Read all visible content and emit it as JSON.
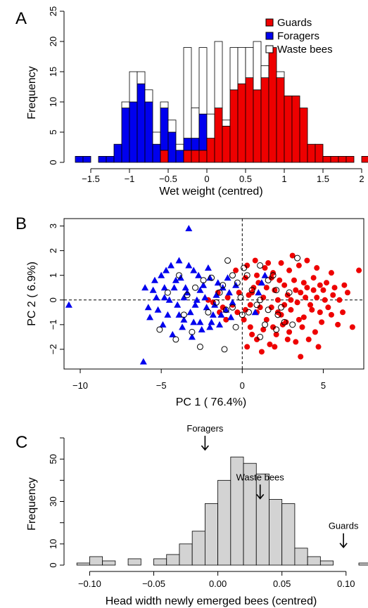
{
  "chart_data": [
    {
      "panel": "A",
      "type": "bar",
      "title": "",
      "xlabel": "Wet weight (centred)",
      "ylabel": "Frequency",
      "xlim": [
        -1.7,
        1.9
      ],
      "ylim": [
        0,
        25
      ],
      "xticks": [
        -1.5,
        -1,
        -0.5,
        0,
        0.5,
        1,
        1.5,
        2
      ],
      "xtick_labels": [
        "−1.5",
        "−1",
        "−0.5",
        "0",
        "0.5",
        "1",
        "1.5",
        "2"
      ],
      "yticks": [
        0,
        5,
        10,
        15,
        20,
        25
      ],
      "ytick_labels": [
        "0",
        "5",
        "10",
        "15",
        "20",
        "25"
      ],
      "bin_width": 0.1,
      "bin_start": -1.7,
      "stacked": true,
      "legend_position": "top-right",
      "series": [
        {
          "name": "Guards",
          "color": "#ee0000",
          "values": [
            0,
            0,
            0,
            0,
            0,
            0,
            0,
            0,
            0,
            0,
            0,
            2,
            0,
            0,
            2,
            2,
            2,
            4,
            9,
            6,
            12,
            13,
            14,
            12,
            14,
            19,
            14,
            11,
            11,
            9,
            3,
            3,
            1,
            1,
            1,
            1,
            0,
            1
          ]
        },
        {
          "name": "Foragers",
          "color": "#0000ee",
          "values": [
            1,
            1,
            0,
            1,
            1,
            3,
            9,
            10,
            13,
            10,
            3,
            7,
            5,
            2,
            2,
            2,
            6,
            0,
            0,
            0,
            0,
            0,
            0,
            0,
            0,
            0,
            0,
            0,
            0,
            0,
            0,
            0,
            0,
            0,
            0,
            0,
            0,
            0
          ]
        },
        {
          "name": "Waste bees",
          "color": "#ffffff",
          "values": [
            0,
            0,
            0,
            0,
            0,
            0,
            1,
            5,
            2,
            2,
            2,
            1,
            2,
            1,
            15,
            5,
            11,
            4,
            11,
            1,
            7,
            6,
            5,
            8,
            2,
            0,
            1,
            0,
            0,
            0,
            0,
            0,
            0,
            0,
            0,
            0,
            0,
            0
          ]
        }
      ]
    },
    {
      "panel": "B",
      "type": "scatter",
      "title": "",
      "xlabel": "PC 1 ( 76.4%)",
      "ylabel": "PC 2 ( 6.9%)",
      "xlim": [
        -11,
        7.5
      ],
      "ylim": [
        -2.8,
        3.3
      ],
      "xticks": [
        -10,
        -5,
        0,
        5
      ],
      "xtick_labels": [
        "−10",
        "−5",
        "0",
        "5"
      ],
      "yticks": [
        -2,
        -1,
        0,
        1,
        2,
        3
      ],
      "ytick_labels": [
        "−2",
        "−1",
        "0",
        "1",
        "2",
        "3"
      ],
      "reference_lines": {
        "x": 0,
        "y": 0
      },
      "series": [
        {
          "name": "Guards",
          "marker": "circle-filled",
          "color": "#ee0000",
          "points": [
            [
              0.2,
              0.9
            ],
            [
              0.6,
              0.3
            ],
            [
              1.0,
              0.7
            ],
            [
              0.5,
              -0.2
            ],
            [
              0.9,
              -0.5
            ],
            [
              1.3,
              0.1
            ],
            [
              1.5,
              0.5
            ],
            [
              1.8,
              -0.3
            ],
            [
              2.0,
              0.4
            ],
            [
              2.2,
              0.0
            ],
            [
              2.4,
              -0.6
            ],
            [
              2.6,
              0.6
            ],
            [
              2.8,
              0.2
            ],
            [
              3.0,
              -0.4
            ],
            [
              3.2,
              0.8
            ],
            [
              3.4,
              -0.1
            ],
            [
              3.6,
              0.3
            ],
            [
              3.8,
              -0.7
            ],
            [
              4.0,
              0.5
            ],
            [
              4.2,
              -0.2
            ],
            [
              4.4,
              0.9
            ],
            [
              4.6,
              0.1
            ],
            [
              4.8,
              -0.5
            ],
            [
              5.0,
              0.4
            ],
            [
              5.3,
              -0.3
            ],
            [
              5.6,
              0.2
            ],
            [
              6.0,
              0.0
            ],
            [
              6.3,
              0.6
            ],
            [
              6.8,
              -1.1
            ],
            [
              7.2,
              1.2
            ],
            [
              5.2,
              0.7
            ],
            [
              4.9,
              -0.9
            ],
            [
              4.5,
              -1.3
            ],
            [
              4.1,
              -1.6
            ],
            [
              3.7,
              -1.1
            ],
            [
              3.3,
              -1.7
            ],
            [
              2.9,
              -1.3
            ],
            [
              2.5,
              -1.0
            ],
            [
              2.1,
              -1.4
            ],
            [
              1.7,
              -1.8
            ],
            [
              1.3,
              -1.2
            ],
            [
              0.9,
              -1.6
            ],
            [
              0.5,
              -1.1
            ],
            [
              0.3,
              -1.9
            ],
            [
              0.1,
              -0.8
            ],
            [
              -0.3,
              -0.5
            ],
            [
              -0.6,
              -0.2
            ],
            [
              -0.9,
              0.1
            ],
            [
              -1.2,
              -0.3
            ],
            [
              -1.5,
              0.3
            ],
            [
              -1.8,
              -0.1
            ],
            [
              -2.1,
              0.0
            ],
            [
              -0.4,
              1.2
            ],
            [
              0.3,
              1.4
            ],
            [
              0.8,
              1.6
            ],
            [
              1.4,
              1.3
            ],
            [
              1.9,
              1.1
            ],
            [
              2.4,
              1.5
            ],
            [
              2.9,
              1.2
            ],
            [
              3.5,
              1.4
            ],
            [
              4.0,
              1.6
            ],
            [
              4.6,
              1.3
            ],
            [
              5.5,
              1.1
            ],
            [
              5.9,
              -1.0
            ],
            [
              6.5,
              0.3
            ],
            [
              3.1,
              1.8
            ],
            [
              1.6,
              1.5
            ],
            [
              2.3,
              0.8
            ],
            [
              3.9,
              0.1
            ],
            [
              4.3,
              -0.4
            ],
            [
              2.7,
              -0.9
            ],
            [
              1.1,
              -0.3
            ],
            [
              0.7,
              0.5
            ],
            [
              0.2,
              -0.4
            ],
            [
              3.6,
              -2.3
            ],
            [
              4.7,
              -1.9
            ],
            [
              1.2,
              -2.1
            ],
            [
              2.0,
              -1.9
            ],
            [
              5.5,
              -0.6
            ],
            [
              6.2,
              -0.5
            ],
            [
              0.9,
              1.0
            ],
            [
              1.8,
              0.9
            ],
            [
              2.6,
              -0.2
            ],
            [
              3.3,
              0.4
            ],
            [
              4.4,
              0.4
            ],
            [
              5.1,
              0.0
            ],
            [
              2.2,
              -0.5
            ],
            [
              1.5,
              -0.8
            ],
            [
              0.4,
              0.2
            ],
            [
              -0.2,
              0.3
            ],
            [
              -1.0,
              -0.8
            ],
            [
              -1.4,
              -0.5
            ],
            [
              3.0,
              0.0
            ],
            [
              3.8,
              0.7
            ],
            [
              4.8,
              0.6
            ],
            [
              5.7,
              0.5
            ],
            [
              0.6,
              -1.4
            ],
            [
              1.9,
              -1.1
            ],
            [
              2.8,
              -1.6
            ],
            [
              3.5,
              -0.8
            ]
          ]
        },
        {
          "name": "Foragers",
          "marker": "triangle-filled",
          "color": "#0000ee",
          "points": [
            [
              -10.7,
              -0.2
            ],
            [
              -6.1,
              -2.5
            ],
            [
              -3.3,
              2.9
            ],
            [
              -5.8,
              -0.3
            ],
            [
              -5.5,
              0.4
            ],
            [
              -5.2,
              -0.4
            ],
            [
              -5.0,
              1.0
            ],
            [
              -4.8,
              0.1
            ],
            [
              -4.6,
              -0.6
            ],
            [
              -4.4,
              1.4
            ],
            [
              -4.2,
              0.5
            ],
            [
              -4.0,
              -0.2
            ],
            [
              -3.8,
              0.9
            ],
            [
              -3.6,
              -0.8
            ],
            [
              -3.4,
              0.3
            ],
            [
              -3.2,
              -0.5
            ],
            [
              -3.0,
              1.2
            ],
            [
              -2.8,
              0.0
            ],
            [
              -2.6,
              -0.9
            ],
            [
              -2.4,
              0.6
            ],
            [
              -2.2,
              -0.3
            ],
            [
              -2.0,
              0.9
            ],
            [
              -1.8,
              -0.6
            ],
            [
              -1.6,
              0.2
            ],
            [
              -1.4,
              -1.0
            ],
            [
              -1.2,
              0.5
            ],
            [
              -1.0,
              -0.4
            ],
            [
              -0.8,
              0.3
            ],
            [
              -0.6,
              -0.1
            ],
            [
              -0.4,
              0.6
            ],
            [
              -4.9,
              -1.0
            ],
            [
              -4.3,
              -1.4
            ],
            [
              -3.7,
              -1.1
            ],
            [
              -3.1,
              -1.5
            ],
            [
              -2.5,
              -1.2
            ],
            [
              -1.9,
              -0.9
            ],
            [
              -5.4,
              0.8
            ],
            [
              -4.7,
              1.2
            ],
            [
              -3.9,
              1.6
            ],
            [
              -3.3,
              1.4
            ],
            [
              -2.7,
              1.0
            ],
            [
              -2.1,
              1.3
            ],
            [
              -1.5,
              0.7
            ],
            [
              -6.0,
              0.5
            ],
            [
              -5.7,
              -0.7
            ],
            [
              -4.5,
              0.0
            ],
            [
              -3.5,
              0.5
            ],
            [
              -2.9,
              -0.2
            ],
            [
              -2.3,
              0.1
            ],
            [
              -1.7,
              -0.2
            ],
            [
              -4.1,
              0.8
            ],
            [
              -3.9,
              -0.6
            ],
            [
              -2.0,
              -1.1
            ],
            [
              -1.3,
              -0.6
            ],
            [
              -0.9,
              0.9
            ],
            [
              -0.7,
              -0.7
            ],
            [
              -3.6,
              0.1
            ],
            [
              -4.8,
              0.5
            ],
            [
              1.2,
              0.7
            ],
            [
              1.4,
              1.0
            ],
            [
              0.8,
              -0.5
            ],
            [
              1.0,
              0.3
            ],
            [
              -5.3,
              0.1
            ],
            [
              -2.6,
              0.4
            ],
            [
              -3.0,
              -0.9
            ]
          ]
        },
        {
          "name": "Waste bees",
          "marker": "circle-open",
          "color": "#000000",
          "points": [
            [
              -5.1,
              -1.2
            ],
            [
              -4.1,
              -1.6
            ],
            [
              -3.1,
              -1.3
            ],
            [
              -2.6,
              -1.9
            ],
            [
              -1.1,
              -2.0
            ],
            [
              -3.6,
              -0.6
            ],
            [
              -2.1,
              -0.5
            ],
            [
              -0.6,
              -0.3
            ],
            [
              0.4,
              -0.5
            ],
            [
              1.4,
              -1.0
            ],
            [
              2.1,
              -1.2
            ],
            [
              2.6,
              -0.9
            ],
            [
              1.1,
              -1.5
            ],
            [
              -1.6,
              -0.1
            ],
            [
              -0.1,
              0.1
            ],
            [
              0.6,
              0.4
            ],
            [
              1.1,
              0.0
            ],
            [
              1.6,
              0.8
            ],
            [
              2.1,
              0.4
            ],
            [
              -0.6,
              1.0
            ],
            [
              -0.9,
              1.6
            ],
            [
              0.1,
              1.3
            ],
            [
              1.1,
              1.4
            ],
            [
              3.4,
              1.7
            ],
            [
              -3.9,
              1.0
            ],
            [
              -2.9,
              0.5
            ],
            [
              -1.4,
              0.3
            ],
            [
              0.9,
              -0.2
            ],
            [
              2.4,
              -0.3
            ],
            [
              3.1,
              -1.0
            ],
            [
              -4.6,
              0.3
            ],
            [
              -1.9,
              0.9
            ],
            [
              -0.3,
              0.7
            ],
            [
              1.6,
              -0.4
            ],
            [
              2.9,
              0.3
            ],
            [
              -3.4,
              0.2
            ],
            [
              -1.0,
              -0.4
            ],
            [
              0.3,
              1.0
            ],
            [
              1.9,
              1.0
            ],
            [
              -2.4,
              0.8
            ],
            [
              -1.2,
              0.6
            ],
            [
              0.0,
              -0.6
            ],
            [
              2.2,
              -0.6
            ],
            [
              -0.4,
              -1.1
            ]
          ]
        }
      ]
    },
    {
      "panel": "C",
      "type": "bar",
      "title": "",
      "xlabel": "Head width newly emerged bees (centred)",
      "ylabel": "Frequency",
      "xlim": [
        -0.12,
        0.11
      ],
      "ylim": [
        0,
        60
      ],
      "xticks": [
        -0.1,
        -0.05,
        0.0,
        0.05,
        0.1
      ],
      "xtick_labels": [
        "−0.10",
        "−0.05",
        "0.00",
        "0.05",
        "0.10"
      ],
      "yticks": [
        0,
        10,
        30,
        50
      ],
      "ytick_labels": [
        "0",
        "10",
        "30",
        "50"
      ],
      "bin_width": 0.01,
      "bin_start": -0.12,
      "fill_color": "#d3d3d3",
      "values": [
        0,
        1,
        4,
        2,
        0,
        3,
        0,
        3,
        5,
        10,
        16,
        29,
        40,
        51,
        48,
        43,
        31,
        29,
        8,
        4,
        2,
        0,
        0,
        1,
        0,
        2
      ],
      "annotations": [
        {
          "text": "Foragers",
          "x": -0.01,
          "y": 63
        },
        {
          "text": "Waste bees",
          "x": 0.033,
          "y": 40
        },
        {
          "text": "Guards",
          "x": 0.098,
          "y": 17
        }
      ]
    }
  ]
}
